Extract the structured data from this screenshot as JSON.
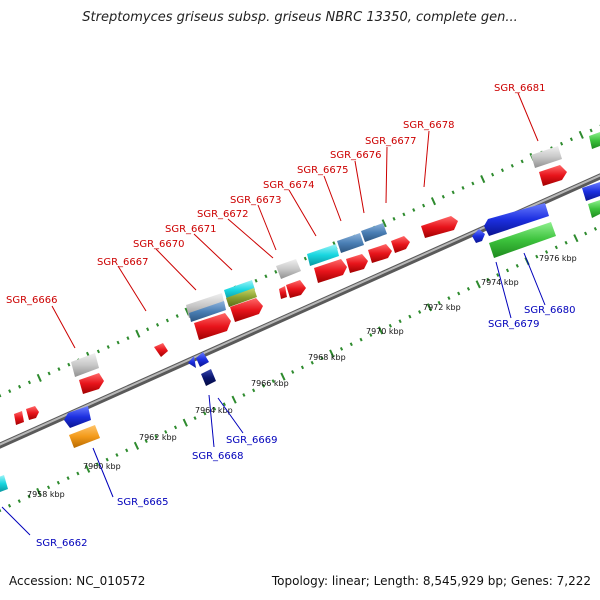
{
  "title": "Streptomyces griseus subsp. griseus NBRC 13350, complete gen...",
  "footer": {
    "accession": "Accession: NC_010572",
    "summary": "Topology: linear; Length: 8,545,929 bp; Genes: 7,222"
  },
  "ticks": [
    "7958 kbp",
    "7960 kbp",
    "7962 kbp",
    "7964 kbp",
    "7966 kbp",
    "7968 kbp",
    "7970 kbp",
    "7972 kbp",
    "7974 kbp",
    "7976 kbp"
  ],
  "genes_top": [
    "SGR_6666",
    "SGR_6667",
    "SGR_6670",
    "SGR_6671",
    "SGR_6672",
    "SGR_6673",
    "SGR_6674",
    "SGR_6675",
    "SGR_6676",
    "SGR_6677",
    "SGR_6678",
    "SGR_6681"
  ],
  "genes_bottom": [
    "SGR_6662",
    "SGR_6665",
    "SGR_6668",
    "SGR_6669",
    "SGR_6679",
    "SGR_6680"
  ],
  "colors": {
    "backbone": "#888888",
    "forward_gene": "#e8141b",
    "reverse_gene": "#1c2fe0",
    "rna_green": "#3cc23c",
    "cyan": "#19d6e0",
    "steel": "#4a7fb5",
    "grey": "#c8c8c8",
    "orange": "#f39a1a",
    "navy": "#0a1670",
    "dots": "#2e8b2e",
    "label_top": "#cc0000",
    "label_bottom": "#0000bb"
  }
}
